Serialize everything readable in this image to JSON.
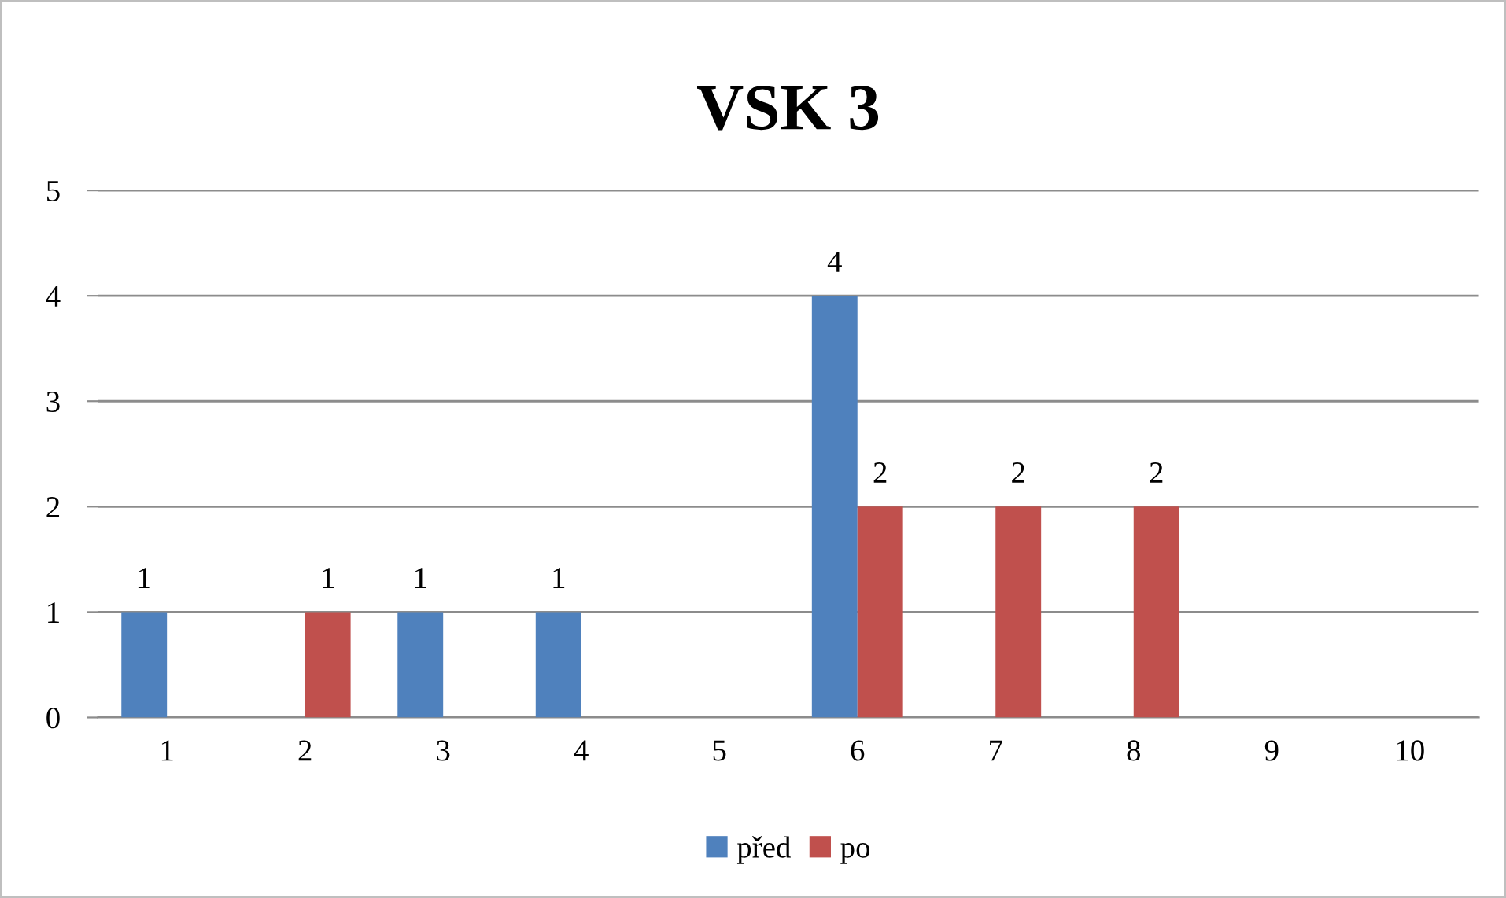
{
  "chart_data": {
    "type": "bar",
    "title": "VSK 3",
    "categories": [
      "1",
      "2",
      "3",
      "4",
      "5",
      "6",
      "7",
      "8",
      "9",
      "10"
    ],
    "series": [
      {
        "name": "před",
        "color": "#4f81bd",
        "values": [
          1,
          null,
          1,
          1,
          null,
          4,
          null,
          null,
          null,
          null
        ]
      },
      {
        "name": "po",
        "color": "#c0504d",
        "values": [
          null,
          1,
          null,
          null,
          null,
          2,
          2,
          2,
          null,
          null
        ]
      }
    ],
    "ylim": [
      0,
      5
    ],
    "yticks": [
      0,
      1,
      2,
      3,
      4,
      5
    ],
    "grid": "y",
    "legend": "bottom",
    "data_labels": true
  }
}
